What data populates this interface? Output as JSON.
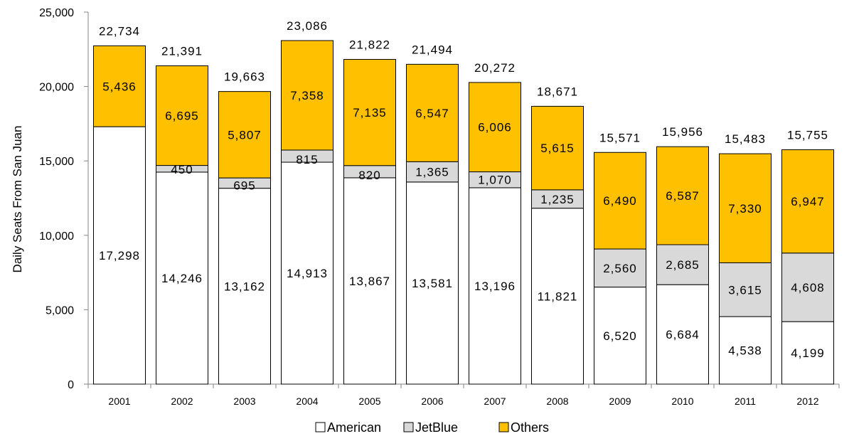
{
  "chart_data": {
    "type": "bar",
    "stacked": true,
    "title": "",
    "xlabel": "",
    "ylabel": "Daily Seats From San Juan",
    "ylim": [
      0,
      25000
    ],
    "yticks": [
      0,
      5000,
      10000,
      15000,
      20000,
      25000
    ],
    "ytick_labels": [
      "0",
      "5,000",
      "10,000",
      "15,000",
      "20,000",
      "25,000"
    ],
    "grid": false,
    "legend_position": "bottom-center",
    "categories": [
      "2001",
      "2002",
      "2003",
      "2004",
      "2005",
      "2006",
      "2007",
      "2008",
      "2009",
      "2010",
      "2011",
      "2012"
    ],
    "series": [
      {
        "name": "American",
        "color": "#ffffff",
        "values": [
          17298,
          14246,
          13162,
          14913,
          13867,
          13581,
          13196,
          11821,
          6520,
          6684,
          4538,
          4199
        ],
        "labels": [
          "17,298",
          "14,246",
          "13,162",
          "14,913",
          "13,867",
          "13,581",
          "13,196",
          "11,821",
          "6,520",
          "6,684",
          "4,538",
          "4,199"
        ]
      },
      {
        "name": "JetBlue",
        "color": "#d9d9d9",
        "values": [
          0,
          450,
          695,
          815,
          820,
          1365,
          1070,
          1235,
          2560,
          2685,
          3615,
          4608
        ],
        "labels": [
          "",
          "450",
          "695",
          "815",
          "820",
          "1,365",
          "1,070",
          "1,235",
          "2,560",
          "2,685",
          "3,615",
          "4,608"
        ]
      },
      {
        "name": "Others",
        "color": "#ffc000",
        "values": [
          5436,
          6695,
          5807,
          7358,
          7135,
          6547,
          6006,
          5615,
          6490,
          6587,
          7330,
          6947
        ],
        "labels": [
          "5,436",
          "6,695",
          "5,807",
          "7,358",
          "7,135",
          "6,547",
          "6,006",
          "5,615",
          "6,490",
          "6,587",
          "7,330",
          "6,947"
        ]
      }
    ],
    "totals": [
      22734,
      21391,
      19663,
      23086,
      21822,
      21494,
      20272,
      18671,
      15571,
      15956,
      15483,
      15755
    ],
    "total_labels": [
      "22,734",
      "21,391",
      "19,663",
      "23,086",
      "21,822",
      "21,494",
      "20,272",
      "18,671",
      "15,571",
      "15,956",
      "15,483",
      "15,755"
    ]
  }
}
